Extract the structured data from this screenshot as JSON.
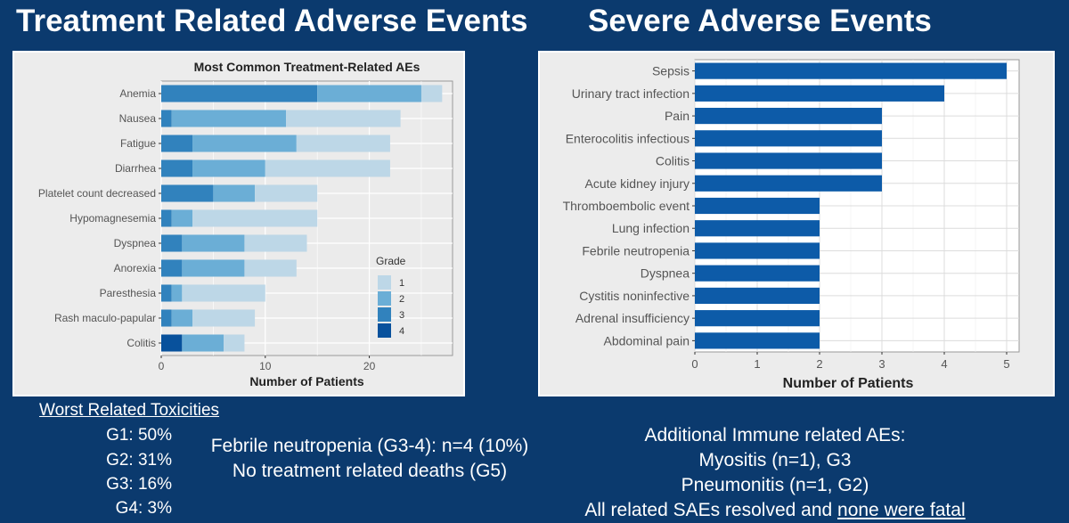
{
  "left_title": "Treatment Related Adverse Events",
  "right_title": "Severe Adverse Events",
  "chart_data": [
    {
      "type": "bar",
      "orientation": "horizontal",
      "stacked": true,
      "title": "Most Common Treatment-Related AEs",
      "xlabel": "Number of Patients",
      "ylabel": "",
      "xlim": [
        0,
        28
      ],
      "xticks": [
        0,
        10,
        20
      ],
      "grid": true,
      "categories": [
        "Anemia",
        "Nausea",
        "Fatigue",
        "Diarrhea",
        "Platelet count decreased",
        "Hypomagnesemia",
        "Dyspnea",
        "Anorexia",
        "Paresthesia",
        "Rash maculo-papular",
        "Colitis"
      ],
      "legend": {
        "title": "Grade",
        "position": "right"
      },
      "series": [
        {
          "name": "4",
          "color": "#08519c",
          "values": [
            0,
            0,
            0,
            0,
            0,
            0,
            0,
            0,
            0,
            0,
            2
          ]
        },
        {
          "name": "3",
          "color": "#3182bd",
          "values": [
            15,
            1,
            3,
            3,
            5,
            1,
            2,
            2,
            1,
            1,
            0
          ]
        },
        {
          "name": "2",
          "color": "#6baed6",
          "values": [
            10,
            11,
            10,
            7,
            4,
            2,
            6,
            6,
            1,
            2,
            4
          ]
        },
        {
          "name": "1",
          "color": "#bdd7e7",
          "values": [
            2,
            11,
            9,
            12,
            6,
            12,
            6,
            5,
            8,
            6,
            2
          ]
        }
      ]
    },
    {
      "type": "bar",
      "orientation": "horizontal",
      "title": "",
      "xlabel": "Number of Patients",
      "ylabel": "",
      "xlim": [
        0,
        5.2
      ],
      "xticks": [
        0,
        1,
        2,
        3,
        4,
        5
      ],
      "grid": true,
      "color": "#0d5ba8",
      "categories": [
        "Sepsis",
        "Urinary tract infection",
        "Pain",
        "Enterocolitis infectious",
        "Colitis",
        "Acute kidney injury",
        "Thromboembolic event",
        "Lung infection",
        "Febrile neutropenia",
        "Dyspnea",
        "Cystitis noninfective",
        "Adrenal insufficiency",
        "Abdominal pain"
      ],
      "values": [
        5,
        4,
        3,
        3,
        3,
        3,
        2,
        2,
        2,
        2,
        2,
        2,
        2
      ]
    }
  ],
  "worst_toxicities": {
    "heading": "Worst Related Toxicities",
    "g1": "G1: 50%",
    "g2": "G2: 31%",
    "g3": "G3: 16%",
    "g4": "G4: 3%"
  },
  "febrile": {
    "line1": "Febrile neutropenia (G3-4): n=4 (10%)",
    "line2": "No treatment related deaths (G5)"
  },
  "immune": {
    "line1": "Additional Immune related AEs:",
    "line2": "Myositis (n=1), G3",
    "line3": "Pneumonitis (n=1, G2)",
    "line4_prefix": "All related SAEs resolved and ",
    "line4_underlined": "none were fatal"
  }
}
